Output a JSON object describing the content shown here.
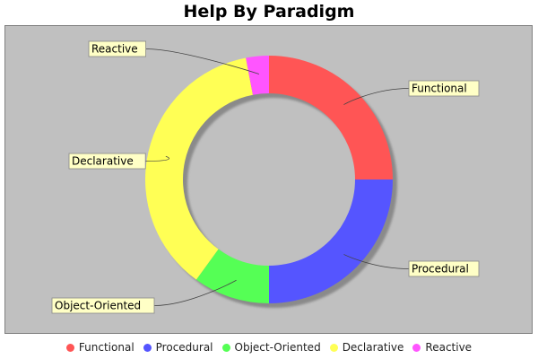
{
  "chart_data": {
    "type": "pie",
    "title": "Help By Paradigm",
    "legend_position": "bottom",
    "slices": [
      {
        "label": "Functional",
        "value": 25,
        "color": "#ff5555"
      },
      {
        "label": "Procedural",
        "value": 25,
        "color": "#5555ff"
      },
      {
        "label": "Object-Oriented",
        "value": 10,
        "color": "#55ff55"
      },
      {
        "label": "Declarative",
        "value": 37,
        "color": "#ffff55"
      },
      {
        "label": "Reactive",
        "value": 3,
        "color": "#ff55ff"
      }
    ]
  }
}
